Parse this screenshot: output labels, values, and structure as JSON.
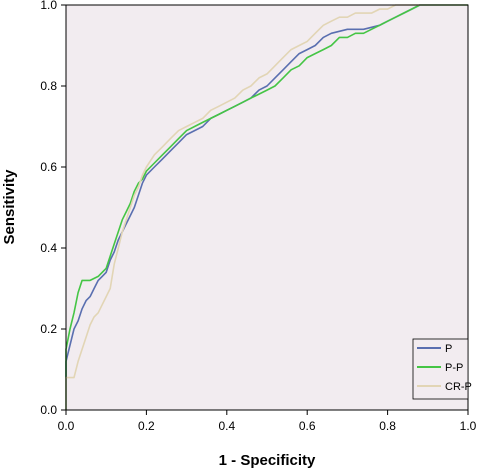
{
  "chart_data": {
    "type": "line",
    "title": "",
    "xlabel": "1 - Specificity",
    "ylabel": "Sensitivity",
    "xlim": [
      0,
      1
    ],
    "ylim": [
      0,
      1
    ],
    "xticks": [
      "0.0",
      "0.2",
      "0.4",
      "0.6",
      "0.8",
      "1.0"
    ],
    "yticks": [
      "0.0",
      "0.2",
      "0.4",
      "0.6",
      "0.8",
      "1.0"
    ],
    "grid": false,
    "legend_position": "bottom-right",
    "plot_background": "#f2ecf0",
    "series": [
      {
        "name": "P",
        "color": "#5a6fb0",
        "points": [
          [
            0,
            0
          ],
          [
            0,
            0.12
          ],
          [
            0.01,
            0.16
          ],
          [
            0.02,
            0.2
          ],
          [
            0.03,
            0.22
          ],
          [
            0.04,
            0.25
          ],
          [
            0.05,
            0.27
          ],
          [
            0.06,
            0.28
          ],
          [
            0.07,
            0.3
          ],
          [
            0.08,
            0.32
          ],
          [
            0.09,
            0.33
          ],
          [
            0.1,
            0.34
          ],
          [
            0.11,
            0.37
          ],
          [
            0.12,
            0.39
          ],
          [
            0.13,
            0.42
          ],
          [
            0.14,
            0.44
          ],
          [
            0.15,
            0.46
          ],
          [
            0.16,
            0.48
          ],
          [
            0.17,
            0.5
          ],
          [
            0.18,
            0.53
          ],
          [
            0.19,
            0.56
          ],
          [
            0.2,
            0.58
          ],
          [
            0.22,
            0.6
          ],
          [
            0.24,
            0.62
          ],
          [
            0.26,
            0.64
          ],
          [
            0.28,
            0.66
          ],
          [
            0.3,
            0.68
          ],
          [
            0.32,
            0.69
          ],
          [
            0.34,
            0.7
          ],
          [
            0.36,
            0.72
          ],
          [
            0.38,
            0.73
          ],
          [
            0.4,
            0.74
          ],
          [
            0.42,
            0.75
          ],
          [
            0.44,
            0.76
          ],
          [
            0.46,
            0.77
          ],
          [
            0.48,
            0.79
          ],
          [
            0.5,
            0.8
          ],
          [
            0.52,
            0.82
          ],
          [
            0.54,
            0.84
          ],
          [
            0.56,
            0.86
          ],
          [
            0.58,
            0.88
          ],
          [
            0.6,
            0.89
          ],
          [
            0.62,
            0.9
          ],
          [
            0.64,
            0.92
          ],
          [
            0.66,
            0.93
          ],
          [
            0.7,
            0.94
          ],
          [
            0.74,
            0.94
          ],
          [
            0.78,
            0.95
          ],
          [
            0.8,
            0.96
          ],
          [
            0.82,
            0.97
          ],
          [
            0.84,
            0.98
          ],
          [
            0.86,
            0.99
          ],
          [
            0.88,
            1.0
          ],
          [
            1.0,
            1.0
          ]
        ]
      },
      {
        "name": "P-P",
        "color": "#45c545",
        "points": [
          [
            0,
            0
          ],
          [
            0,
            0.15
          ],
          [
            0.01,
            0.2
          ],
          [
            0.02,
            0.24
          ],
          [
            0.03,
            0.29
          ],
          [
            0.04,
            0.32
          ],
          [
            0.06,
            0.32
          ],
          [
            0.08,
            0.33
          ],
          [
            0.1,
            0.35
          ],
          [
            0.11,
            0.38
          ],
          [
            0.12,
            0.41
          ],
          [
            0.13,
            0.44
          ],
          [
            0.14,
            0.47
          ],
          [
            0.15,
            0.49
          ],
          [
            0.16,
            0.51
          ],
          [
            0.17,
            0.54
          ],
          [
            0.18,
            0.56
          ],
          [
            0.19,
            0.57
          ],
          [
            0.2,
            0.59
          ],
          [
            0.22,
            0.61
          ],
          [
            0.24,
            0.63
          ],
          [
            0.26,
            0.65
          ],
          [
            0.28,
            0.67
          ],
          [
            0.3,
            0.69
          ],
          [
            0.32,
            0.7
          ],
          [
            0.34,
            0.71
          ],
          [
            0.36,
            0.72
          ],
          [
            0.38,
            0.73
          ],
          [
            0.4,
            0.74
          ],
          [
            0.42,
            0.75
          ],
          [
            0.44,
            0.76
          ],
          [
            0.46,
            0.77
          ],
          [
            0.48,
            0.78
          ],
          [
            0.5,
            0.79
          ],
          [
            0.52,
            0.8
          ],
          [
            0.54,
            0.82
          ],
          [
            0.56,
            0.84
          ],
          [
            0.58,
            0.85
          ],
          [
            0.6,
            0.87
          ],
          [
            0.62,
            0.88
          ],
          [
            0.64,
            0.89
          ],
          [
            0.66,
            0.9
          ],
          [
            0.68,
            0.92
          ],
          [
            0.7,
            0.92
          ],
          [
            0.72,
            0.93
          ],
          [
            0.74,
            0.93
          ],
          [
            0.76,
            0.94
          ],
          [
            0.78,
            0.95
          ],
          [
            0.8,
            0.96
          ],
          [
            0.82,
            0.97
          ],
          [
            0.84,
            0.98
          ],
          [
            0.86,
            0.99
          ],
          [
            0.88,
            1.0
          ],
          [
            1.0,
            1.0
          ]
        ]
      },
      {
        "name": "CR-P",
        "color": "#e2d5b5",
        "points": [
          [
            0,
            0
          ],
          [
            0,
            0.08
          ],
          [
            0.02,
            0.08
          ],
          [
            0.03,
            0.12
          ],
          [
            0.04,
            0.15
          ],
          [
            0.05,
            0.18
          ],
          [
            0.06,
            0.21
          ],
          [
            0.07,
            0.23
          ],
          [
            0.08,
            0.24
          ],
          [
            0.09,
            0.26
          ],
          [
            0.1,
            0.28
          ],
          [
            0.11,
            0.3
          ],
          [
            0.12,
            0.36
          ],
          [
            0.13,
            0.4
          ],
          [
            0.14,
            0.44
          ],
          [
            0.15,
            0.47
          ],
          [
            0.16,
            0.5
          ],
          [
            0.17,
            0.53
          ],
          [
            0.18,
            0.55
          ],
          [
            0.19,
            0.58
          ],
          [
            0.2,
            0.6
          ],
          [
            0.22,
            0.63
          ],
          [
            0.24,
            0.65
          ],
          [
            0.26,
            0.67
          ],
          [
            0.28,
            0.69
          ],
          [
            0.3,
            0.7
          ],
          [
            0.32,
            0.71
          ],
          [
            0.34,
            0.72
          ],
          [
            0.36,
            0.74
          ],
          [
            0.38,
            0.75
          ],
          [
            0.4,
            0.76
          ],
          [
            0.42,
            0.77
          ],
          [
            0.44,
            0.79
          ],
          [
            0.46,
            0.8
          ],
          [
            0.48,
            0.82
          ],
          [
            0.5,
            0.83
          ],
          [
            0.52,
            0.85
          ],
          [
            0.54,
            0.87
          ],
          [
            0.56,
            0.89
          ],
          [
            0.58,
            0.9
          ],
          [
            0.6,
            0.91
          ],
          [
            0.62,
            0.93
          ],
          [
            0.64,
            0.95
          ],
          [
            0.66,
            0.96
          ],
          [
            0.68,
            0.97
          ],
          [
            0.7,
            0.97
          ],
          [
            0.72,
            0.98
          ],
          [
            0.74,
            0.98
          ],
          [
            0.76,
            0.98
          ],
          [
            0.78,
            0.99
          ],
          [
            0.8,
            0.99
          ],
          [
            0.82,
            1.0
          ],
          [
            1.0,
            1.0
          ]
        ]
      }
    ]
  }
}
